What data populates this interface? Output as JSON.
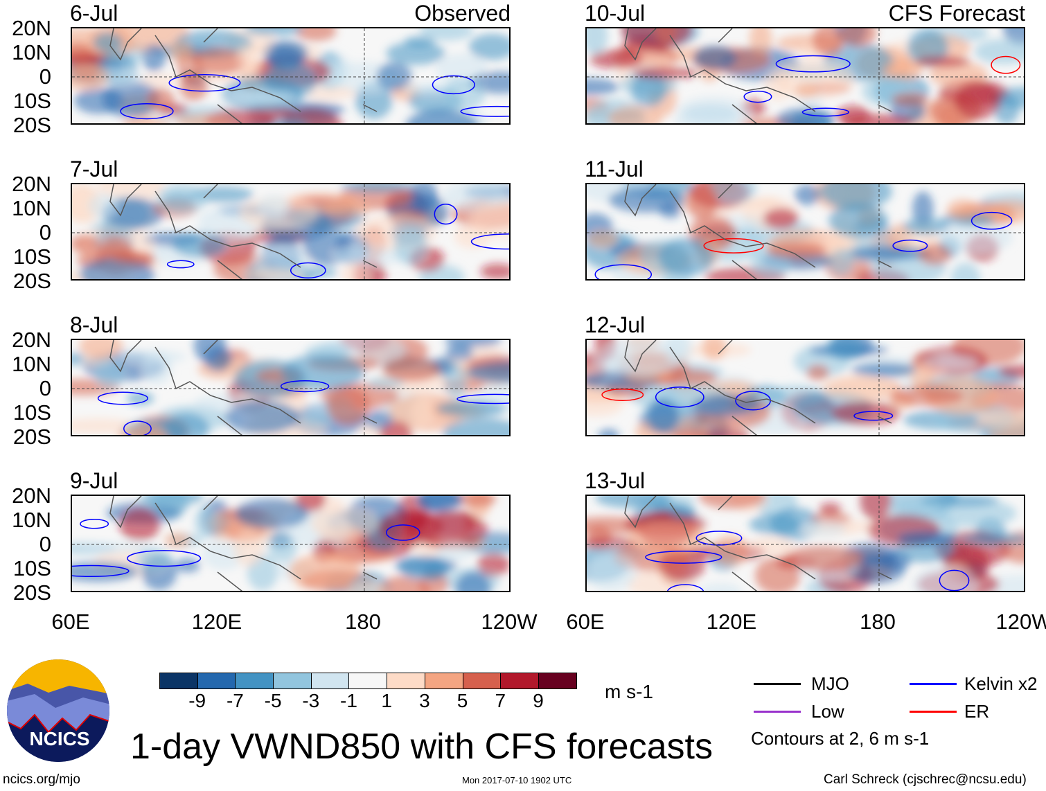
{
  "panels": {
    "left": [
      {
        "date": "6-Jul",
        "tag": "Observed"
      },
      {
        "date": "7-Jul"
      },
      {
        "date": "8-Jul"
      },
      {
        "date": "9-Jul"
      }
    ],
    "right": [
      {
        "date": "10-Jul",
        "tag": "CFS Forecast"
      },
      {
        "date": "11-Jul"
      },
      {
        "date": "12-Jul"
      },
      {
        "date": "13-Jul"
      }
    ]
  },
  "lat_labels": [
    "20N",
    "10N",
    "0",
    "10S",
    "20S"
  ],
  "lon_labels": [
    "60E",
    "120E",
    "180",
    "120W"
  ],
  "colorbar": {
    "colors": [
      "#0b3466",
      "#2468ae",
      "#4393c3",
      "#92c5de",
      "#d1e5f0",
      "#f7f7f7",
      "#fddbc7",
      "#f4a582",
      "#d6604d",
      "#b2182b",
      "#67001f"
    ],
    "labels": [
      "-9",
      "-7",
      "-5",
      "-3",
      "-1",
      "1",
      "3",
      "5",
      "7",
      "9"
    ],
    "units": "m s-1"
  },
  "legend": {
    "items": [
      {
        "label": "MJO",
        "color": "#000000"
      },
      {
        "label": "Kelvin x2",
        "color": "#0000ff"
      },
      {
        "label": "Low",
        "color": "#9932cc"
      },
      {
        "label": "ER",
        "color": "#ff0000"
      }
    ],
    "note": "Contours at 2, 6 m s-1"
  },
  "title": "1-day VWND850 with CFS forecasts",
  "logo_text": "NCICS",
  "footer": {
    "left": "ncics.org/mjo",
    "center": "Mon 2017-07-10 1902 UTC",
    "right": "Carl Schreck (cjschrec@ncsu.edu)"
  }
}
